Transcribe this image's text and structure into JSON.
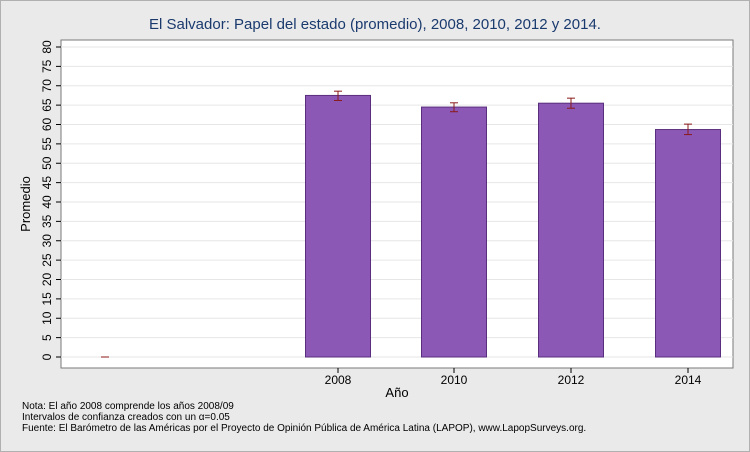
{
  "chart_data": {
    "type": "bar",
    "title": "El Salvador: Papel del estado (promedio), 2008, 2010, 2012 y 2014.",
    "xlabel": "Año",
    "ylabel": "Promedio",
    "categories": [
      "",
      "2008",
      "2010",
      "2012",
      "2014"
    ],
    "values": [
      0,
      67.5,
      64.5,
      65.5,
      58.7
    ],
    "ci_low": [
      0,
      66.2,
      63.3,
      64.2,
      57.4
    ],
    "ci_high": [
      0,
      68.6,
      65.6,
      66.8,
      60.1
    ],
    "ylim": [
      0,
      80
    ],
    "yticks": [
      "0",
      "5",
      "10",
      "15",
      "20",
      "25",
      "30",
      "35",
      "40",
      "45",
      "50",
      "55",
      "60",
      "65",
      "70",
      "75",
      "80"
    ],
    "grid": true,
    "legend": "none",
    "bar_color": "#8b58b5",
    "bar_edge_color": "#5a2e7e",
    "ci_color": "#8b1a1a"
  },
  "notes": {
    "line1": "Nota: El año 2008 comprende los años 2008/09",
    "line2": "Intervalos de confianza creados con un α=0.05",
    "line3": "Fuente: El Barómetro de las Américas por el Proyecto de Opinión Pública de América Latina (LAPOP), www.LapopSurveys.org."
  }
}
